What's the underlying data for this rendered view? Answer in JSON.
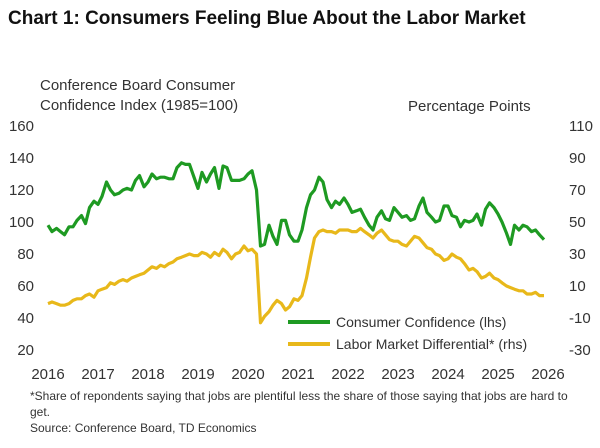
{
  "title": "Chart 1: Consumers Feeling Blue About the Labor Market",
  "left_axis_label": "Conference Board Consumer Confidence Index (1985=100)",
  "right_axis_label": "Percentage Points",
  "footnote": "*Share of repondents saying that jobs are plentiful less the share of those saying that jobs are hard to get.",
  "source": "Source: Conference Board, TD Economics",
  "colors": {
    "consumer_confidence": "#1e9a22",
    "labor_differential": "#e8b81a"
  },
  "chart_data": {
    "type": "line",
    "title": "Chart 1: Consumers Feeling Blue About the Labor Market",
    "xlabel": "",
    "ylabel": "Conference Board Consumer Confidence Index (1985=100)",
    "y2label": "Percentage Points",
    "xlim": [
      2016,
      2026
    ],
    "ylim": [
      20,
      160
    ],
    "y2lim": [
      -30,
      110
    ],
    "xticks": [
      "2016",
      "2017",
      "2018",
      "2019",
      "2020",
      "2021",
      "2022",
      "2023",
      "2024",
      "2025",
      "2026"
    ],
    "yticks": [
      20,
      40,
      60,
      80,
      100,
      120,
      140,
      160
    ],
    "y2ticks": [
      -30,
      -10,
      10,
      30,
      50,
      70,
      90,
      110
    ],
    "grid": false,
    "legend_position": "bottom-right",
    "series": [
      {
        "name": "Consumer Confidence (lhs)",
        "axis": "left",
        "x": [
          2016.0,
          2016.08,
          2016.17,
          2016.25,
          2016.33,
          2016.42,
          2016.5,
          2016.58,
          2016.67,
          2016.75,
          2016.83,
          2016.92,
          2017.0,
          2017.08,
          2017.17,
          2017.25,
          2017.33,
          2017.42,
          2017.5,
          2017.58,
          2017.67,
          2017.75,
          2017.83,
          2017.92,
          2018.0,
          2018.08,
          2018.17,
          2018.25,
          2018.33,
          2018.42,
          2018.5,
          2018.58,
          2018.67,
          2018.75,
          2018.83,
          2018.92,
          2019.0,
          2019.08,
          2019.17,
          2019.25,
          2019.33,
          2019.42,
          2019.5,
          2019.58,
          2019.67,
          2019.75,
          2019.83,
          2019.92,
          2020.0,
          2020.08,
          2020.17,
          2020.25,
          2020.33,
          2020.42,
          2020.5,
          2020.58,
          2020.67,
          2020.75,
          2020.83,
          2020.92,
          2021.0,
          2021.08,
          2021.17,
          2021.25,
          2021.33,
          2021.42,
          2021.5,
          2021.58,
          2021.67,
          2021.75,
          2021.83,
          2021.92,
          2022.0,
          2022.08,
          2022.17,
          2022.25,
          2022.33,
          2022.42,
          2022.5,
          2022.58,
          2022.67,
          2022.75,
          2022.83,
          2022.92,
          2023.0,
          2023.08,
          2023.17,
          2023.25,
          2023.33,
          2023.42,
          2023.5,
          2023.58,
          2023.67,
          2023.75,
          2023.83,
          2023.92,
          2024.0,
          2024.08,
          2024.17,
          2024.25,
          2024.33,
          2024.42,
          2024.5,
          2024.58,
          2024.67,
          2024.75,
          2024.83,
          2024.92,
          2025.0,
          2025.08,
          2025.17,
          2025.25,
          2025.33,
          2025.42,
          2025.5,
          2025.58,
          2025.67,
          2025.75,
          2025.83,
          2025.92
        ],
        "values": [
          98,
          94,
          96,
          94,
          92,
          97,
          97,
          101,
          104,
          99,
          109,
          113,
          111,
          116,
          125,
          120,
          117,
          118,
          120,
          121,
          120,
          126,
          129,
          122,
          125,
          130,
          127,
          128,
          128,
          127,
          127,
          134,
          137,
          136,
          136,
          128,
          121,
          131,
          125,
          130,
          134,
          121,
          135,
          134,
          126,
          126,
          126,
          127,
          130,
          132,
          120,
          85,
          86,
          98,
          91,
          86,
          101,
          101,
          92,
          88,
          88,
          95,
          109,
          117,
          120,
          128,
          125,
          114,
          109,
          113,
          111,
          115,
          111,
          106,
          107,
          108,
          103,
          98,
          95,
          103,
          107,
          102,
          101,
          109,
          106,
          103,
          104,
          101,
          102,
          110,
          115,
          106,
          103,
          100,
          101,
          110,
          110,
          104,
          103,
          97,
          101,
          100,
          101,
          105,
          98,
          108,
          112,
          109,
          105,
          100,
          93,
          86,
          98,
          95,
          98,
          97,
          94,
          95,
          92,
          89
        ]
      },
      {
        "name": "Labor Market Differential* (rhs)",
        "axis": "right",
        "x": [
          2016.0,
          2016.08,
          2016.17,
          2016.25,
          2016.33,
          2016.42,
          2016.5,
          2016.58,
          2016.67,
          2016.75,
          2016.83,
          2016.92,
          2017.0,
          2017.08,
          2017.17,
          2017.25,
          2017.33,
          2017.42,
          2017.5,
          2017.58,
          2017.67,
          2017.75,
          2017.83,
          2017.92,
          2018.0,
          2018.08,
          2018.17,
          2018.25,
          2018.33,
          2018.42,
          2018.5,
          2018.58,
          2018.67,
          2018.75,
          2018.83,
          2018.92,
          2019.0,
          2019.08,
          2019.17,
          2019.25,
          2019.33,
          2019.42,
          2019.5,
          2019.58,
          2019.67,
          2019.75,
          2019.83,
          2019.92,
          2020.0,
          2020.08,
          2020.17,
          2020.25,
          2020.33,
          2020.42,
          2020.5,
          2020.58,
          2020.67,
          2020.75,
          2020.83,
          2020.92,
          2021.0,
          2021.08,
          2021.17,
          2021.25,
          2021.33,
          2021.42,
          2021.5,
          2021.58,
          2021.67,
          2021.75,
          2021.83,
          2021.92,
          2022.0,
          2022.08,
          2022.17,
          2022.25,
          2022.33,
          2022.42,
          2022.5,
          2022.58,
          2022.67,
          2022.75,
          2022.83,
          2022.92,
          2023.0,
          2023.08,
          2023.17,
          2023.25,
          2023.33,
          2023.42,
          2023.5,
          2023.58,
          2023.67,
          2023.75,
          2023.83,
          2023.92,
          2024.0,
          2024.08,
          2024.17,
          2024.25,
          2024.33,
          2024.42,
          2024.5,
          2024.58,
          2024.67,
          2024.75,
          2024.83,
          2024.92,
          2025.0,
          2025.08,
          2025.17,
          2025.25,
          2025.33,
          2025.42,
          2025.5,
          2025.58,
          2025.67,
          2025.75,
          2025.83,
          2025.92
        ],
        "values": [
          -1,
          0,
          -1,
          -2,
          -2,
          -1,
          1,
          2,
          2,
          4,
          5,
          3,
          7,
          8,
          9,
          12,
          11,
          13,
          14,
          13,
          15,
          16,
          17,
          18,
          20,
          22,
          21,
          23,
          22,
          24,
          25,
          27,
          28,
          29,
          30,
          29,
          29,
          31,
          30,
          28,
          31,
          29,
          33,
          31,
          27,
          30,
          31,
          35,
          32,
          33,
          30,
          -13,
          -9,
          -6,
          -2,
          1,
          -1,
          -5,
          -3,
          2,
          1,
          4,
          15,
          28,
          40,
          44,
          45,
          44,
          44,
          43,
          45,
          45,
          45,
          44,
          44,
          46,
          44,
          42,
          40,
          43,
          45,
          42,
          39,
          38,
          38,
          36,
          35,
          38,
          41,
          40,
          37,
          34,
          33,
          30,
          29,
          26,
          27,
          30,
          28,
          27,
          24,
          20,
          21,
          19,
          15,
          16,
          18,
          15,
          14,
          12,
          10,
          9,
          8,
          7,
          7,
          5,
          5,
          6,
          4,
          4
        ]
      }
    ]
  }
}
